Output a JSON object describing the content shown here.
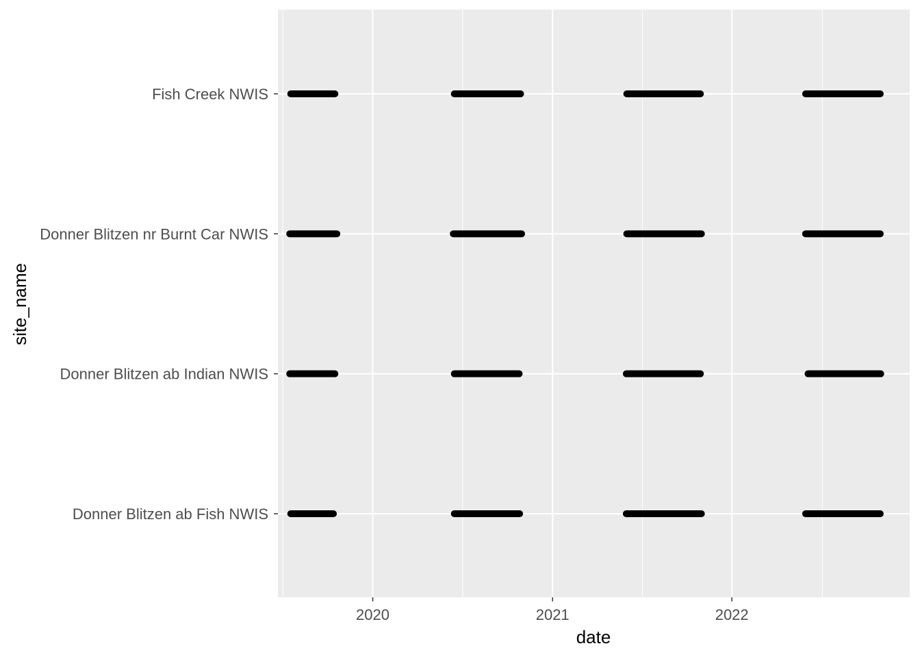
{
  "chart_data": {
    "type": "scatter",
    "title": "",
    "xlabel": "date",
    "ylabel": "site_name",
    "x_scale": "date",
    "x_ticks": [
      "2020",
      "2021",
      "2022"
    ],
    "xlim": [
      "2019-06-22",
      "2022-12-29"
    ],
    "categories": [
      "Donner Blitzen ab Fish NWIS",
      "Donner Blitzen ab Indian NWIS",
      "Donner Blitzen nr Burnt Car NWIS",
      "Fish Creek NWIS"
    ],
    "grid": true,
    "legend": "none",
    "point_color": "#000000",
    "panel_color": "#ebebeb",
    "series": [
      {
        "values": [
          {
            "site": "Fish Creek NWIS",
            "start": "2019-07-18",
            "end": "2019-10-16"
          },
          {
            "site": "Fish Creek NWIS",
            "start": "2020-06-15",
            "end": "2020-10-28"
          },
          {
            "site": "Fish Creek NWIS",
            "start": "2021-06-01",
            "end": "2021-10-29"
          },
          {
            "site": "Fish Creek NWIS",
            "start": "2022-05-31",
            "end": "2022-10-30"
          },
          {
            "site": "Donner Blitzen nr Burnt Car NWIS",
            "start": "2019-07-16",
            "end": "2019-10-20"
          },
          {
            "site": "Donner Blitzen nr Burnt Car NWIS",
            "start": "2020-06-13",
            "end": "2020-10-30"
          },
          {
            "site": "Donner Blitzen nr Burnt Car NWIS",
            "start": "2021-06-01",
            "end": "2021-10-31"
          },
          {
            "site": "Donner Blitzen nr Burnt Car NWIS",
            "start": "2022-05-31",
            "end": "2022-10-30"
          },
          {
            "site": "Donner Blitzen ab Indian NWIS",
            "start": "2019-07-16",
            "end": "2019-10-16"
          },
          {
            "site": "Donner Blitzen ab Indian NWIS",
            "start": "2020-06-15",
            "end": "2020-10-25"
          },
          {
            "site": "Donner Blitzen ab Indian NWIS",
            "start": "2021-05-31",
            "end": "2021-10-29"
          },
          {
            "site": "Donner Blitzen ab Indian NWIS",
            "start": "2022-06-05",
            "end": "2022-10-31"
          },
          {
            "site": "Donner Blitzen ab Fish NWIS",
            "start": "2019-07-18",
            "end": "2019-10-13"
          },
          {
            "site": "Donner Blitzen ab Fish NWIS",
            "start": "2020-06-15",
            "end": "2020-10-26"
          },
          {
            "site": "Donner Blitzen ab Fish NWIS",
            "start": "2021-05-31",
            "end": "2021-10-31"
          },
          {
            "site": "Donner Blitzen ab Fish NWIS",
            "start": "2022-05-31",
            "end": "2022-10-30"
          }
        ]
      }
    ]
  }
}
